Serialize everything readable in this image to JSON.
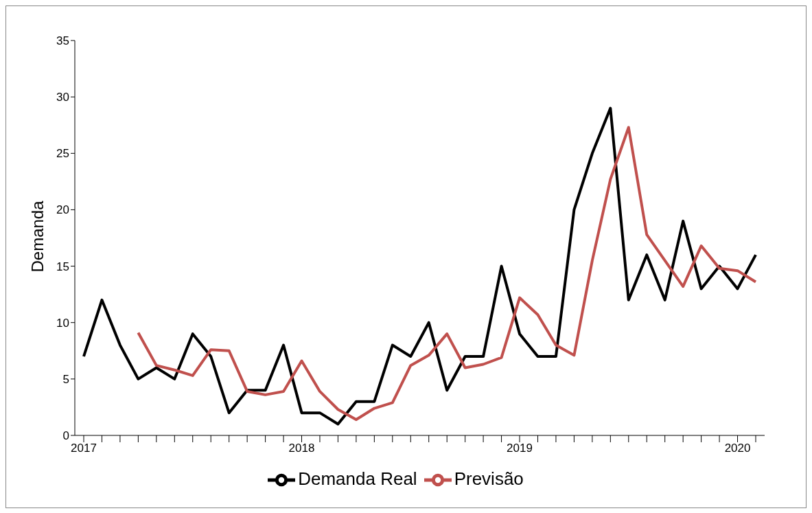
{
  "chart_data": {
    "type": "line",
    "ylabel": "Demanda",
    "categories": [
      "2017",
      null,
      null,
      null,
      null,
      null,
      null,
      null,
      null,
      null,
      null,
      null,
      "2018",
      null,
      null,
      null,
      null,
      null,
      null,
      null,
      null,
      null,
      null,
      null,
      "2019",
      null,
      null,
      null,
      null,
      null,
      null,
      null,
      null,
      null,
      null,
      null,
      "2020",
      null
    ],
    "series": [
      {
        "name": "Demanda Real",
        "color": "#000000",
        "values": [
          7,
          12,
          8,
          5,
          6,
          5,
          9,
          7,
          2,
          4,
          4,
          8,
          2,
          2,
          1,
          3,
          3,
          8,
          7,
          10,
          4,
          7,
          7,
          15,
          9,
          7,
          7,
          20,
          25,
          29,
          12,
          16,
          12,
          19,
          13,
          15,
          13,
          16
        ]
      },
      {
        "name": "Previsão",
        "color": "#c0504d",
        "values": [
          null,
          null,
          null,
          9.1,
          6.2,
          5.8,
          5.3,
          7.6,
          7.5,
          3.9,
          3.6,
          3.9,
          6.6,
          3.9,
          2.3,
          1.4,
          2.4,
          2.9,
          6.2,
          7.1,
          9.0,
          6.0,
          6.3,
          6.9,
          12.2,
          10.7,
          8.0,
          7.1,
          15.5,
          22.7,
          27.3,
          17.8,
          15.5,
          13.2,
          16.8,
          14.8,
          14.6,
          13.6
        ]
      }
    ],
    "ylim": [
      0,
      35
    ],
    "yticks": [
      0,
      5,
      10,
      15,
      20,
      25,
      30,
      35
    ],
    "grid": false,
    "legend": "bottom",
    "marker": "none",
    "line_style": "solid"
  }
}
